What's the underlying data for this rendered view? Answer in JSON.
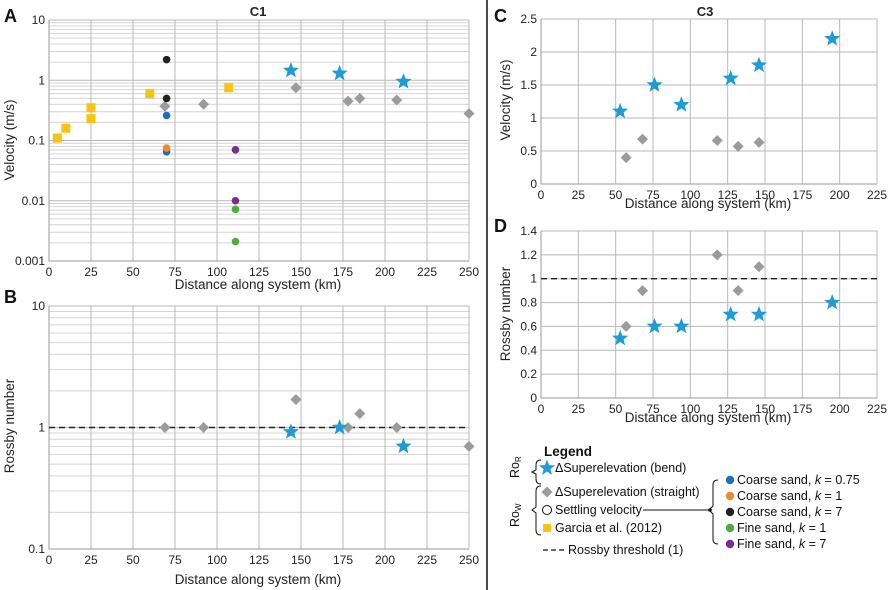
{
  "colors": {
    "blue_star": "#1f9bd7",
    "gray": "#9b9b9b",
    "yellow": "#f9c30f",
    "coarse_075": "#1b6ec2",
    "coarse_1": "#f28b30",
    "coarse_7": "#222222",
    "fine_1": "#4cae3a",
    "fine_7": "#7a2d91",
    "grid": "#c8c8c8"
  },
  "chart_data": [
    {
      "id": "A",
      "panel_label": "A",
      "title": "C1",
      "type": "scatter",
      "yscale": "log",
      "xlabel": "Distance along system (km)",
      "ylabel": "Velocity (m/s)",
      "xlim": [
        0,
        250
      ],
      "ylim": [
        0.001,
        10
      ],
      "xticks": [
        "0",
        "25",
        "50",
        "75",
        "100",
        "125",
        "150",
        "175",
        "200",
        "225",
        "250"
      ],
      "yticks": [
        "0.001",
        "0.01",
        "0.1",
        "1",
        "10"
      ],
      "series": [
        {
          "name": "ΔSuperelevation (bend)",
          "marker": "star",
          "color": "#1f9bd7",
          "points": [
            [
              144,
              1.45
            ],
            [
              173,
              1.3
            ],
            [
              211,
              0.95
            ]
          ]
        },
        {
          "name": "ΔSuperelevation (straight)",
          "marker": "diamond",
          "color": "#9b9b9b",
          "points": [
            [
              69,
              0.37
            ],
            [
              92,
              0.4
            ],
            [
              147,
              0.75
            ],
            [
              178,
              0.45
            ],
            [
              185,
              0.5
            ],
            [
              207,
              0.47
            ],
            [
              250,
              0.28
            ]
          ]
        },
        {
          "name": "Garcia et al. (2012)",
          "marker": "square",
          "color": "#f9c30f",
          "points": [
            [
              5,
              0.11
            ],
            [
              10,
              0.16
            ],
            [
              25,
              0.35
            ],
            [
              25,
              0.23
            ],
            [
              60,
              0.6
            ],
            [
              107,
              0.75
            ]
          ]
        },
        {
          "name": "Coarse sand, k = 0.75",
          "marker": "circle",
          "color": "#1b6ec2",
          "points": [
            [
              70,
              0.26
            ],
            [
              70,
              0.065
            ]
          ]
        },
        {
          "name": "Coarse sand, k = 1",
          "marker": "circle",
          "color": "#f28b30",
          "points": [
            [
              70,
              0.075
            ]
          ]
        },
        {
          "name": "Coarse sand, k = 7",
          "marker": "circle",
          "color": "#222222",
          "points": [
            [
              70,
              2.2
            ],
            [
              70,
              0.5
            ]
          ]
        },
        {
          "name": "Fine sand, k = 1",
          "marker": "circle",
          "color": "#4cae3a",
          "points": [
            [
              111,
              0.0072
            ],
            [
              111,
              0.0021
            ]
          ]
        },
        {
          "name": "Fine sand, k = 7",
          "marker": "circle",
          "color": "#7a2d91",
          "points": [
            [
              111,
              0.07
            ],
            [
              111,
              0.01
            ]
          ]
        }
      ]
    },
    {
      "id": "B",
      "panel_label": "B",
      "title": "",
      "type": "scatter",
      "yscale": "log",
      "xlabel": "Distance along system (km)",
      "ylabel": "Rossby number",
      "xlim": [
        0,
        250
      ],
      "ylim": [
        0.1,
        10
      ],
      "xticks": [
        "0",
        "25",
        "50",
        "75",
        "100",
        "125",
        "150",
        "175",
        "200",
        "225",
        "250"
      ],
      "yticks": [
        "0.1",
        "1",
        "10"
      ],
      "threshold": 1,
      "series": [
        {
          "name": "ΔSuperelevation (bend)",
          "marker": "star",
          "color": "#1f9bd7",
          "points": [
            [
              144,
              0.92
            ],
            [
              173,
              1.0
            ],
            [
              211,
              0.7
            ]
          ]
        },
        {
          "name": "ΔSuperelevation (straight)",
          "marker": "diamond",
          "color": "#9b9b9b",
          "points": [
            [
              69,
              1.0
            ],
            [
              92,
              1.0
            ],
            [
              147,
              1.7
            ],
            [
              178,
              1.0
            ],
            [
              185,
              1.3
            ],
            [
              207,
              1.0
            ],
            [
              250,
              0.7
            ]
          ]
        }
      ]
    },
    {
      "id": "C",
      "panel_label": "C",
      "title": "C3",
      "type": "scatter",
      "yscale": "linear",
      "xlabel": "Distance along system (km)",
      "ylabel": "Velocity (m/s)",
      "xlim": [
        0,
        225
      ],
      "ylim": [
        0,
        2.5
      ],
      "xticks": [
        "0",
        "25",
        "50",
        "75",
        "100",
        "125",
        "150",
        "175",
        "200",
        "225"
      ],
      "yticks": [
        "0",
        "0.5",
        "1",
        "1.5",
        "2",
        "2.5"
      ],
      "series": [
        {
          "name": "ΔSuperelevation (bend)",
          "marker": "star",
          "color": "#1f9bd7",
          "points": [
            [
              53,
              1.1
            ],
            [
              76,
              1.5
            ],
            [
              94,
              1.2
            ],
            [
              127,
              1.6
            ],
            [
              146,
              1.8
            ],
            [
              195,
              2.2
            ]
          ]
        },
        {
          "name": "ΔSuperelevation (straight)",
          "marker": "diamond",
          "color": "#9b9b9b",
          "points": [
            [
              57,
              0.4
            ],
            [
              68,
              0.68
            ],
            [
              118,
              0.66
            ],
            [
              132,
              0.57
            ],
            [
              146,
              0.63
            ]
          ]
        }
      ]
    },
    {
      "id": "D",
      "panel_label": "D",
      "title": "",
      "type": "scatter",
      "yscale": "linear",
      "xlabel": "Distance along system (km)",
      "ylabel": "Rossby number",
      "xlim": [
        0,
        225
      ],
      "ylim": [
        0,
        1.4
      ],
      "xticks": [
        "0",
        "25",
        "50",
        "75",
        "100",
        "125",
        "150",
        "175",
        "200",
        "225"
      ],
      "yticks": [
        "0",
        "0.2",
        "0.4",
        "0.6",
        "0.8",
        "1",
        "1.2",
        "1.4"
      ],
      "threshold": 1,
      "series": [
        {
          "name": "ΔSuperelevation (bend)",
          "marker": "star",
          "color": "#1f9bd7",
          "points": [
            [
              53,
              0.5
            ],
            [
              76,
              0.6
            ],
            [
              94,
              0.6
            ],
            [
              127,
              0.7
            ],
            [
              146,
              0.7
            ],
            [
              195,
              0.8
            ]
          ]
        },
        {
          "name": "ΔSuperelevation (straight)",
          "marker": "diamond",
          "color": "#9b9b9b",
          "points": [
            [
              57,
              0.6
            ],
            [
              68,
              0.9
            ],
            [
              118,
              1.2
            ],
            [
              132,
              0.9
            ],
            [
              146,
              1.1
            ]
          ]
        }
      ]
    }
  ],
  "legend": {
    "title": "Legend",
    "ro_r": "Ro",
    "ro_r_sub": "R",
    "ro_w": "Ro",
    "ro_w_sub": "W",
    "bend": "ΔSuperelevation (bend)",
    "straight": "ΔSuperelevation (straight)",
    "settling": "Settling velocity",
    "garcia": "Garcia et al. (2012)",
    "threshold": "Rossby threshold (1)",
    "coarse_075_prefix": "Coarse sand, ",
    "coarse_075_k": "k",
    "coarse_075_val": " = 0.75",
    "coarse_1_prefix": "Coarse sand, ",
    "coarse_1_k": "k",
    "coarse_1_val": " = 1",
    "coarse_7_prefix": "Coarse sand, ",
    "coarse_7_k": "k",
    "coarse_7_val": " = 7",
    "fine_1_prefix": "Fine sand, ",
    "fine_1_k": "k",
    "fine_1_val": " = 1",
    "fine_7_prefix": "Fine sand, ",
    "fine_7_k": "k",
    "fine_7_val": " = 7"
  }
}
